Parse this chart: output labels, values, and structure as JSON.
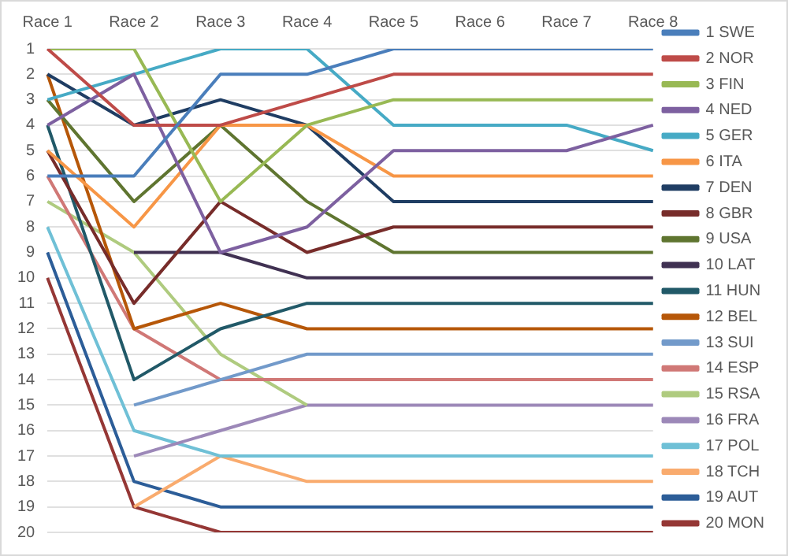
{
  "chart_data": {
    "type": "line",
    "categories": [
      "Race 1",
      "Race 2",
      "Race 3",
      "Race 4",
      "Race 5",
      "Race 6",
      "Race 7",
      "Race 8"
    ],
    "ylim": [
      20,
      1
    ],
    "yticks": [
      1,
      2,
      3,
      4,
      5,
      6,
      7,
      8,
      9,
      10,
      11,
      12,
      13,
      14,
      15,
      16,
      17,
      18,
      19,
      20
    ],
    "grid": "y",
    "legend": "right",
    "marker": "none",
    "series": [
      {
        "name": "1 SWE",
        "color": "#4a7ebb",
        "values": [
          6,
          6,
          2,
          2,
          1,
          1,
          1,
          1
        ]
      },
      {
        "name": "2 NOR",
        "color": "#be4b48",
        "values": [
          1,
          4,
          4,
          3,
          2,
          2,
          2,
          2
        ]
      },
      {
        "name": "3 FIN",
        "color": "#98b954",
        "values": [
          1,
          1,
          7,
          4,
          3,
          3,
          3,
          3
        ]
      },
      {
        "name": "4 NED",
        "color": "#7d60a0",
        "values": [
          4,
          2,
          9,
          8,
          5,
          5,
          5,
          4
        ]
      },
      {
        "name": "5 GER",
        "color": "#46aac5",
        "values": [
          3,
          2,
          1,
          1,
          4,
          4,
          4,
          5
        ]
      },
      {
        "name": "6 ITA",
        "color": "#f79646",
        "values": [
          5,
          8,
          4,
          4,
          6,
          6,
          6,
          6
        ]
      },
      {
        "name": "7 DEN",
        "color": "#1f3d63",
        "values": [
          2,
          4,
          3,
          4,
          7,
          7,
          7,
          7
        ]
      },
      {
        "name": "8 GBR",
        "color": "#772c2a",
        "values": [
          5,
          11,
          7,
          9,
          8,
          8,
          8,
          8
        ]
      },
      {
        "name": "9 USA",
        "color": "#5f7530",
        "values": [
          3,
          7,
          4,
          7,
          9,
          9,
          9,
          9
        ]
      },
      {
        "name": "10 LAT",
        "color": "#403152",
        "values": [
          null,
          9,
          9,
          10,
          10,
          10,
          10,
          10
        ]
      },
      {
        "name": "11 HUN",
        "color": "#215968",
        "values": [
          4,
          14,
          12,
          11,
          11,
          11,
          11,
          11
        ]
      },
      {
        "name": "12 BEL",
        "color": "#b65708",
        "values": [
          2,
          12,
          11,
          12,
          12,
          12,
          12,
          12
        ]
      },
      {
        "name": "13 SUI",
        "color": "#729aca",
        "values": [
          null,
          15,
          14,
          13,
          13,
          13,
          13,
          13
        ]
      },
      {
        "name": "14 ESP",
        "color": "#d07876",
        "values": [
          6,
          12,
          14,
          14,
          14,
          14,
          14,
          14
        ]
      },
      {
        "name": "15 RSA",
        "color": "#afcb7f",
        "values": [
          7,
          9,
          13,
          15,
          null,
          null,
          null,
          null
        ]
      },
      {
        "name": "16 FRA",
        "color": "#9c88b8",
        "values": [
          null,
          17,
          16,
          15,
          15,
          15,
          15,
          15
        ]
      },
      {
        "name": "17 POL",
        "color": "#6fc0d6",
        "values": [
          8,
          16,
          17,
          17,
          17,
          17,
          17,
          17
        ]
      },
      {
        "name": "18 TCH",
        "color": "#f9ab6e",
        "values": [
          null,
          19,
          17,
          18,
          18,
          18,
          18,
          18
        ]
      },
      {
        "name": "19 AUT",
        "color": "#2c5d98",
        "values": [
          9,
          18,
          19,
          19,
          19,
          19,
          19,
          19
        ]
      },
      {
        "name": "20 MON",
        "color": "#953735",
        "values": [
          10,
          19,
          20,
          20,
          20,
          20,
          20,
          20
        ]
      }
    ]
  }
}
